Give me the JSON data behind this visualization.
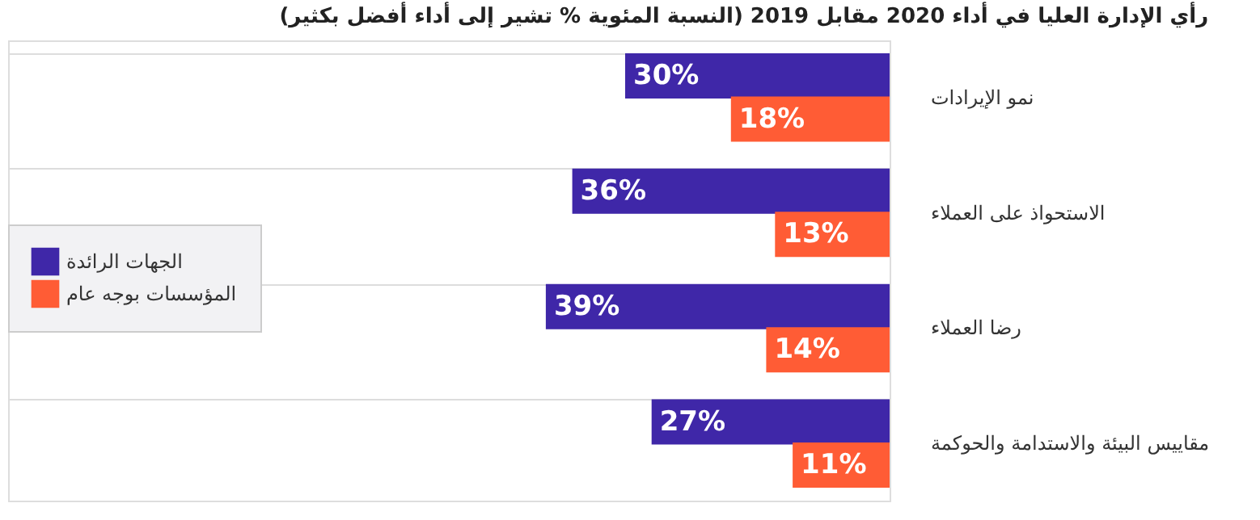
{
  "chart_data": {
    "type": "bar",
    "orientation": "horizontal",
    "title": "رأي الإدارة العليا في أداء 2020 مقابل 2019 (النسبة المئوية % تشير إلى أداء أفضل بكثير)",
    "categories": [
      "نمو الإيرادات",
      "الاستحواذ على العملاء",
      "رضا العملاء",
      "مقاييس البيئة والاستدامة والحوكمة"
    ],
    "series": [
      {
        "name": "الجهات الرائدة",
        "color": "#3f27a8",
        "values": [
          30,
          36,
          39,
          27
        ],
        "value_labels": [
          "30%",
          "36%",
          "39%",
          "27%"
        ]
      },
      {
        "name": "المؤسسات بوجه عام",
        "color": "#ff5c35",
        "values": [
          18,
          13,
          14,
          11
        ],
        "value_labels": [
          "18%",
          "13%",
          "14%",
          "11%"
        ]
      }
    ],
    "xlim": [
      100,
      0
    ],
    "grid": "y",
    "legend": "left",
    "tick_labels": "y"
  }
}
